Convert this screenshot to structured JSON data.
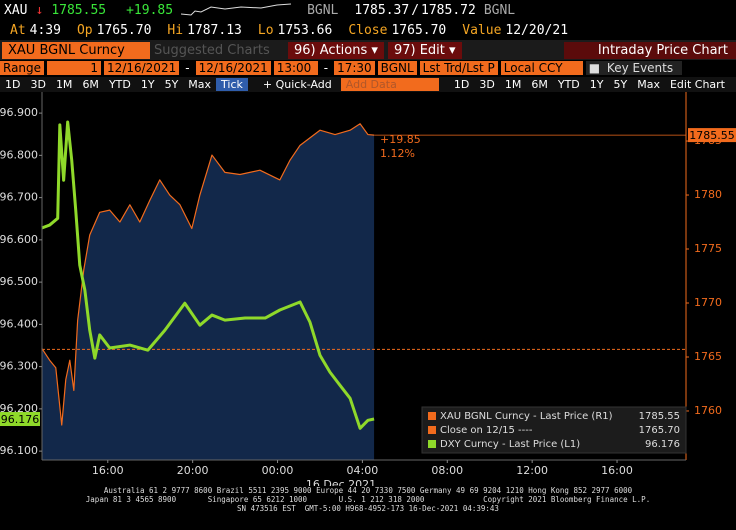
{
  "header": {
    "ticker": "XAU",
    "last": "1785.55",
    "change": "+19.85",
    "source": "BGNL",
    "bid": "1785.37",
    "separator": "/",
    "ask": "1785.72",
    "source2": "BGNL",
    "stats": [
      {
        "label": "At",
        "value": "4:39"
      },
      {
        "label": "Op",
        "value": "1765.70"
      },
      {
        "label": "Hi",
        "value": "1787.13"
      },
      {
        "label": "Lo",
        "value": "1753.66"
      },
      {
        "label": "Close",
        "value": "1765.70"
      },
      {
        "label": "Value",
        "value": "12/20/21"
      }
    ]
  },
  "toolbar": {
    "security": "XAU BGNL Curncy",
    "suggested": "Suggested Charts",
    "actions_key": "96",
    "actions": "Actions",
    "edit_key": "97",
    "edit": "Edit",
    "title": "Intraday Price Chart"
  },
  "range_bar": {
    "label": "Range",
    "period": "1",
    "start_date": "12/16/2021",
    "date_sep": "-",
    "end_date": "12/16/2021",
    "start_time": "13:00",
    "time_sep": "-",
    "end_time": "17:30",
    "source": "BGNL",
    "field": "Lst Trd/Lst P",
    "currency": "Local CCY",
    "events": "Key Events"
  },
  "period_bar": {
    "periods": [
      "1D",
      "3D",
      "1M",
      "6M",
      "YTD",
      "1Y",
      "5Y",
      "Max"
    ],
    "tick": "Tick",
    "quick_add": "+ Quick-Add",
    "add_data": "Add Data",
    "right_periods": [
      "1D",
      "3D",
      "1M",
      "6M",
      "YTD",
      "1Y",
      "5Y",
      "Max"
    ],
    "edit_chart": "Edit Chart"
  },
  "chart_data": {
    "type": "line",
    "x_label": "16 Dec 2021",
    "xlim": [
      12.9,
      43.25
    ],
    "xticks": [
      {
        "value": 16,
        "label": "16:00"
      },
      {
        "value": 20,
        "label": "20:00"
      },
      {
        "value": 24,
        "label": "00:00"
      },
      {
        "value": 28,
        "label": "04:00"
      },
      {
        "value": 32,
        "label": "08:00"
      },
      {
        "value": 36,
        "label": "12:00"
      },
      {
        "value": 40,
        "label": "16:00"
      }
    ],
    "ylim": [
      96.079,
      96.931
    ],
    "yticks": [
      {
        "value": 96.1,
        "label": "96.100"
      },
      {
        "value": 96.2,
        "label": "96.200"
      },
      {
        "value": 96.3,
        "label": "96.300"
      },
      {
        "value": 96.4,
        "label": "96.400"
      },
      {
        "value": 96.5,
        "label": "96.500"
      },
      {
        "value": 96.6,
        "label": "96.600"
      },
      {
        "value": 96.7,
        "label": "96.700"
      },
      {
        "value": 96.8,
        "label": "96.800"
      },
      {
        "value": 96.9,
        "label": "96.900"
      }
    ],
    "y2lim": [
      1755.46,
      1788.8
    ],
    "y2ticks": [
      1760,
      1765,
      1770,
      1775,
      1780,
      1785
    ],
    "grid": false,
    "series": [
      {
        "name": "XAU BGNL Curncy - Last Price (R1)",
        "color": "#f26b1d",
        "axis": "y2",
        "last": 1785.55,
        "x": [
          12.89,
          13.26,
          13.55,
          13.83,
          14.02,
          14.21,
          14.4,
          14.58,
          14.87,
          15.15,
          15.62,
          16.09,
          16.57,
          17.04,
          17.51,
          17.98,
          18.45,
          18.92,
          19.4,
          19.96,
          20.34,
          20.91,
          21.52,
          22.23,
          23.17,
          24.11,
          24.58,
          25.06,
          26.0,
          26.71,
          27.42,
          27.89,
          28.26,
          28.55
        ],
        "values": [
          1765.8,
          1764.7,
          1764.0,
          1758.7,
          1762.9,
          1764.7,
          1761.9,
          1768.4,
          1773.1,
          1776.3,
          1778.4,
          1778.6,
          1777.5,
          1779.1,
          1777.5,
          1779.5,
          1781.4,
          1780.0,
          1779.1,
          1776.9,
          1780.0,
          1783.7,
          1782.1,
          1781.9,
          1782.3,
          1781.4,
          1783.2,
          1784.6,
          1786.0,
          1785.6,
          1786.0,
          1786.6,
          1785.6,
          1785.55
        ]
      },
      {
        "name": "DXY Curncy - Last Price (L1)",
        "color": "#8fd92a",
        "axis": "y",
        "last": 96.176,
        "x": [
          12.89,
          13.26,
          13.64,
          13.74,
          13.92,
          14.11,
          14.3,
          14.49,
          14.68,
          14.92,
          15.15,
          15.39,
          15.62,
          16.09,
          17.04,
          17.89,
          18.69,
          19.63,
          20.34,
          20.91,
          21.52,
          22.47,
          23.42,
          24.11,
          25.06,
          25.53,
          26.0,
          26.47,
          26.94,
          27.42,
          27.89,
          28.26,
          28.55
        ],
        "values": [
          96.628,
          96.635,
          96.651,
          96.872,
          96.741,
          96.879,
          96.789,
          96.67,
          96.54,
          96.481,
          96.386,
          96.32,
          96.375,
          96.344,
          96.351,
          96.339,
          96.386,
          96.45,
          96.398,
          96.422,
          96.41,
          96.415,
          96.415,
          96.434,
          96.453,
          96.405,
          96.327,
          96.287,
          96.256,
          96.225,
          96.154,
          96.173,
          96.176
        ]
      }
    ],
    "close_line": {
      "name": "Close on 12/15 ----",
      "value": 1765.7,
      "label": "1765.70",
      "color": "#f26b1d",
      "axis": "y2"
    },
    "annotations": [
      "+19.85",
      "1.12%"
    ],
    "area_color": "#12284a"
  },
  "footer": [
    "Australia 61 2 9777 8600 Brazil 5511 2395 9000 Europe 44 20 7330 7500 Germany 49 69 9204 1210 Hong Kong 852 2977 6000",
    "Japan 81 3 4565 8900       Singapore 65 6212 1000       U.S. 1 212 318 2000             Copyright 2021 Bloomberg Finance L.P.",
    "SN 473516 EST  GMT-5:00 H968-4952-173 16-Dec-2021 04:39:43"
  ]
}
